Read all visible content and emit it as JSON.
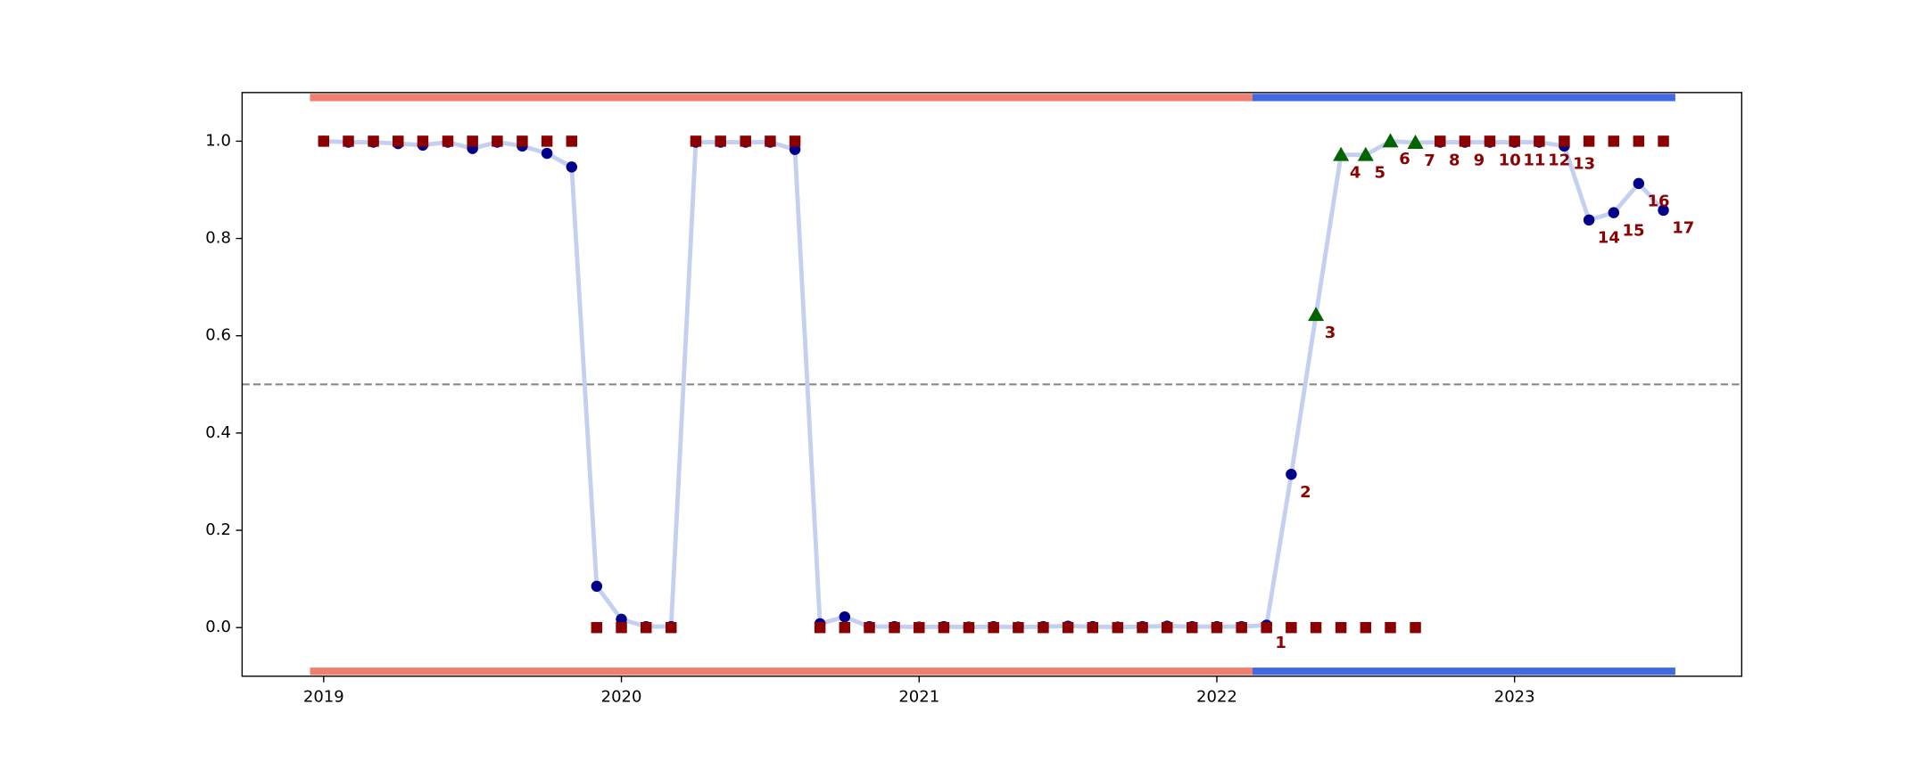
{
  "chart_data": {
    "type": "line",
    "x": [
      2019,
      2019.083,
      2019.167,
      2019.25,
      2019.333,
      2019.417,
      2019.5,
      2019.583,
      2019.667,
      2019.75,
      2019.833,
      2019.917,
      2020,
      2020.083,
      2020.167,
      2020.25,
      2020.333,
      2020.417,
      2020.5,
      2020.583,
      2020.667,
      2020.75,
      2020.833,
      2020.917,
      2021,
      2021.083,
      2021.167,
      2021.25,
      2021.333,
      2021.417,
      2021.5,
      2021.583,
      2021.667,
      2021.75,
      2021.833,
      2021.917,
      2022,
      2022.083,
      2022.167,
      2022.25,
      2022.333,
      2022.417,
      2022.5,
      2022.583,
      2022.667,
      2022.75,
      2022.833,
      2022.917,
      2023,
      2023.083,
      2023.167,
      2023.25,
      2023.333,
      2023.417,
      2023.5
    ],
    "series": [
      {
        "color": "#00008b",
        "line_color": "#c5d0f0",
        "highlight_color": "#006400",
        "values": [
          1.0,
          0.998,
          0.998,
          0.995,
          0.992,
          0.998,
          0.985,
          0.998,
          0.99,
          0.975,
          0.947,
          0.085,
          0.017,
          0.002,
          0.002,
          0.998,
          0.998,
          0.998,
          0.998,
          0.983,
          0.008,
          0.022,
          0.002,
          0.002,
          0.001,
          0.002,
          0.001,
          0.002,
          0.001,
          0.002,
          0.003,
          0.002,
          0.001,
          0.002,
          0.003,
          0.002,
          0.002,
          0.002,
          0.005,
          0.315,
          0.643,
          0.972,
          0.972,
          1.0,
          0.997,
          0.998,
          0.998,
          0.998,
          0.998,
          0.998,
          0.99,
          0.838,
          0.853,
          0.913,
          0.858
        ],
        "point_labels": [
          null,
          null,
          null,
          null,
          null,
          null,
          null,
          null,
          null,
          null,
          null,
          null,
          null,
          null,
          null,
          null,
          null,
          null,
          null,
          null,
          null,
          null,
          null,
          null,
          null,
          null,
          null,
          null,
          null,
          null,
          null,
          null,
          null,
          null,
          null,
          null,
          null,
          null,
          "1",
          "2",
          "3",
          "4",
          "5",
          "6",
          "7",
          "8",
          "9",
          "10",
          "11",
          "12",
          "13",
          "14",
          "15",
          "16",
          "17"
        ]
      },
      {
        "color": "#8b0000",
        "marker": "square",
        "values": [
          1,
          1,
          1,
          1,
          1,
          1,
          1,
          1,
          1,
          1,
          1,
          0,
          0,
          0,
          0,
          1,
          1,
          1,
          1,
          1,
          0,
          0,
          0,
          0,
          0,
          0,
          0,
          0,
          0,
          0,
          0,
          0,
          0,
          0,
          0,
          0,
          0,
          0,
          0,
          0,
          0,
          0,
          0,
          0,
          0,
          1,
          1,
          1,
          1,
          1,
          1,
          1,
          1,
          1,
          1
        ]
      }
    ],
    "threshold": 0.5,
    "periods": [
      {
        "start": 2018.954,
        "end": 2022.12,
        "color": "#f07f70"
      },
      {
        "start": 2022.12,
        "end": 2023.54,
        "color": "#4169e1"
      }
    ],
    "xlim": [
      2018.726,
      2023.763
    ],
    "xticks": [
      2019,
      2020,
      2021,
      2022,
      2023
    ],
    "ylim": [
      -0.1,
      1.1
    ],
    "yticks": [
      {
        "value": 0,
        "label": "0.0"
      },
      {
        "value": 0.2,
        "label": "0.2"
      },
      {
        "value": 0.4,
        "label": "0.4"
      },
      {
        "value": 0.6,
        "label": "0.6"
      },
      {
        "value": 0.8,
        "label": "0.8"
      },
      {
        "value": 1.0,
        "label": "1.0"
      }
    ]
  }
}
